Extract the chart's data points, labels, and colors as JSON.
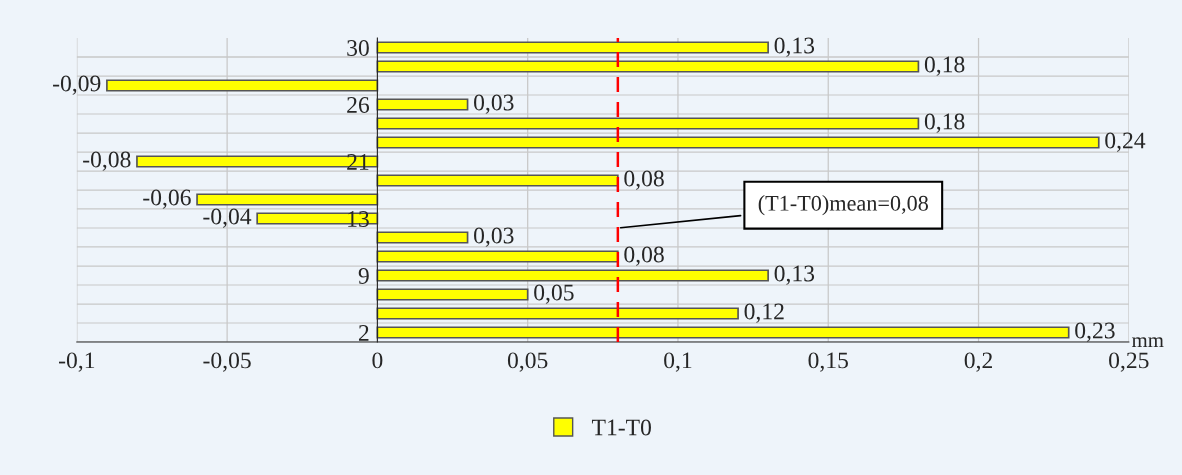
{
  "chart_data": {
    "type": "bar",
    "orientation": "horizontal",
    "xlabel": "mm",
    "categories": [
      "30",
      null,
      null,
      "26",
      null,
      null,
      "21",
      null,
      null,
      "13",
      null,
      null,
      "9",
      null,
      null,
      "2"
    ],
    "series": [
      {
        "name": "T1-T0",
        "color": "#ffff00",
        "values": [
          0.13,
          0.18,
          -0.09,
          0.03,
          0.18,
          0.24,
          -0.08,
          0.08,
          -0.06,
          -0.04,
          0.03,
          0.08,
          0.13,
          0.05,
          0.12,
          0.23
        ],
        "value_labels": [
          "0,13",
          "0,18",
          "-0,09",
          "0,03",
          "0,18",
          "0,24",
          "-0,08",
          "0,08",
          "-0,06",
          "-0,04",
          "0,03",
          "0,08",
          "0,13",
          "0,05",
          "0,12",
          "0,23"
        ]
      }
    ],
    "xlim": [
      -0.1,
      0.25
    ],
    "xticks": [
      {
        "value": -0.1,
        "label": "-0,1"
      },
      {
        "value": -0.05,
        "label": "-0,05"
      },
      0,
      {
        "value": 0.05,
        "label": "0,05"
      },
      {
        "value": 0.1,
        "label": "0,1"
      },
      {
        "value": 0.15,
        "label": "0,15"
      },
      {
        "value": 0.2,
        "label": "0,2"
      },
      {
        "value": 0.25,
        "label": "0,25"
      }
    ],
    "ref_lines": [
      {
        "axis": "x",
        "value": 0.08,
        "label": "(T1-T0)mean=0,08",
        "color": "#ff0000",
        "line_style": "dashed"
      }
    ],
    "grid": true,
    "legend": "bottom"
  }
}
